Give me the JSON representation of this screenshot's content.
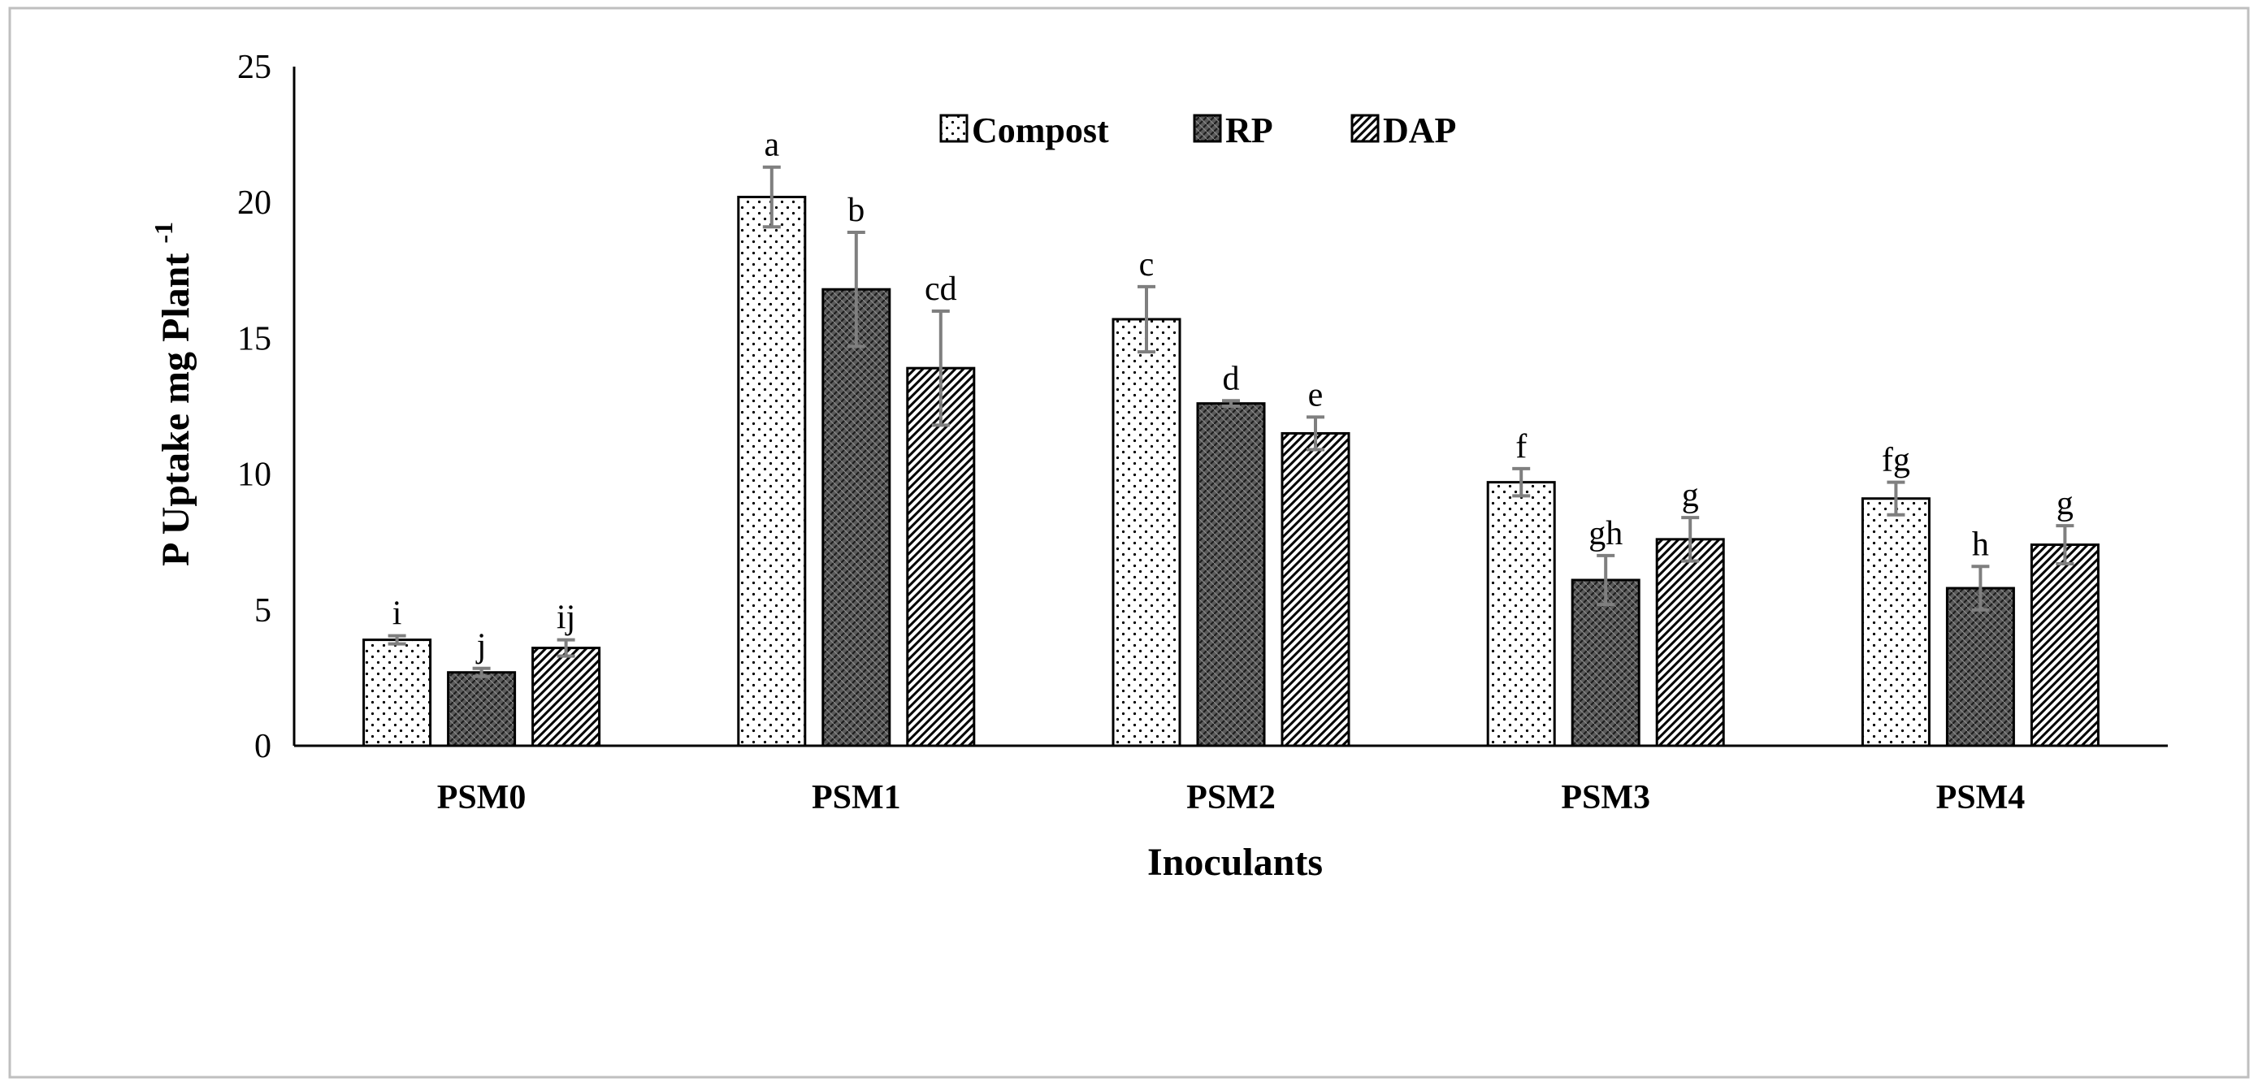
{
  "chart_data": {
    "type": "bar",
    "title": "",
    "xlabel": "Inoculants",
    "ylabel_main": "P Uptake mg Plant",
    "ylabel_sup": "-1",
    "ylim": [
      0,
      25
    ],
    "yticks": [
      0,
      5,
      10,
      15,
      20,
      25
    ],
    "ytick_labels": [
      "0",
      "5",
      "10",
      "15",
      "20",
      "25"
    ],
    "grid": false,
    "legend_position": "top-center",
    "categories": [
      "PSM0",
      "PSM1",
      "PSM2",
      "PSM3",
      "PSM4"
    ],
    "series": [
      {
        "name": "Compost",
        "pattern": "dots",
        "values": [
          3.9,
          20.2,
          15.7,
          9.7,
          9.1
        ],
        "errors": [
          0.15,
          1.1,
          1.2,
          0.5,
          0.6
        ],
        "labels": [
          "i",
          "a",
          "c",
          "f",
          "fg"
        ]
      },
      {
        "name": "RP",
        "pattern": "dark-crosshatch",
        "values": [
          2.7,
          16.8,
          12.6,
          6.1,
          5.8
        ],
        "errors": [
          0.15,
          2.1,
          0.1,
          0.9,
          0.8
        ],
        "labels": [
          "j",
          "b",
          "d",
          "gh",
          "h"
        ]
      },
      {
        "name": "DAP",
        "pattern": "diagonal-stripes",
        "values": [
          3.6,
          13.9,
          11.5,
          7.6,
          7.4
        ],
        "errors": [
          0.3,
          2.1,
          0.6,
          0.8,
          0.7
        ],
        "labels": [
          "ij",
          "cd",
          "e",
          "g",
          "g"
        ]
      }
    ]
  },
  "colors": {
    "axis": "#000000",
    "bar_stroke": "#000000",
    "error_bar": "#7f7f7f",
    "frame": "#bfbfbf",
    "background": "#ffffff"
  }
}
